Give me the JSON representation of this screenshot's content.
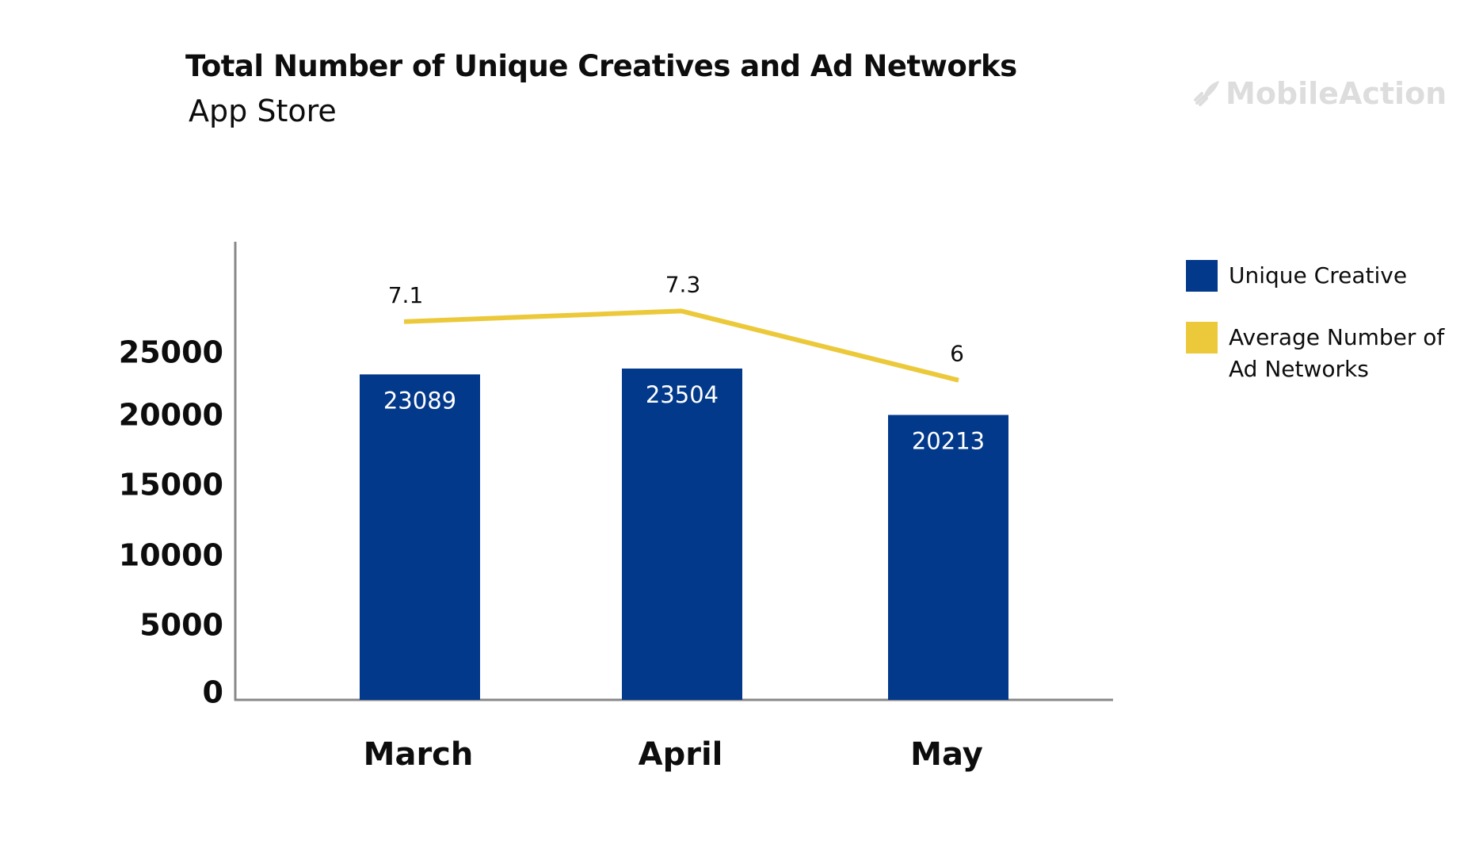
{
  "header": {
    "title": "Total Number of Unique Creatives and Ad Networks",
    "subtitle": "App Store",
    "brand": "MobileAction"
  },
  "colors": {
    "bar": "#03398a",
    "line": "#ecc93a",
    "axis": "#888888",
    "logo": "#dddddd"
  },
  "chart_data": {
    "type": "bar",
    "title": "Total Number of Unique Creatives and Ad Networks",
    "subtitle": "App Store",
    "categories": [
      "March",
      "April",
      "May"
    ],
    "series": [
      {
        "name": "Unique Creative",
        "type": "bar",
        "values": [
          23089,
          23504,
          20213
        ],
        "color": "#03398a"
      },
      {
        "name": "Average Number of Ad Networks",
        "type": "line",
        "values": [
          7.1,
          7.3,
          6
        ],
        "color": "#ecc93a"
      }
    ],
    "y_ticks": [
      "0",
      "5000",
      "10000",
      "15000",
      "20000",
      "25000"
    ],
    "ylim": [
      0,
      32500
    ],
    "line_ylim": [
      0,
      8.6
    ],
    "legend_position": "right",
    "grid": false
  }
}
